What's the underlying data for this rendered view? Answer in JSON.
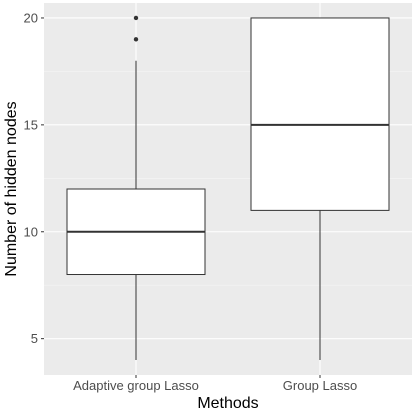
{
  "chart_data": {
    "type": "boxplot",
    "xlabel": "Methods",
    "ylabel": "Number of hidden nodes",
    "ylim": [
      3.3,
      20.7
    ],
    "y_ticks": [
      5,
      10,
      15,
      20
    ],
    "y_tick_labels": [
      "5",
      "10",
      "15",
      "20"
    ],
    "categories": [
      "Adaptive group Lasso",
      "Group Lasso"
    ],
    "boxes": [
      {
        "category": "Adaptive group Lasso",
        "whisker_low": 4,
        "q1": 8,
        "median": 10,
        "q3": 12,
        "whisker_high": 18,
        "outliers": [
          19,
          20
        ]
      },
      {
        "category": "Group Lasso",
        "whisker_low": 4,
        "q1": 11,
        "median": 15,
        "q3": 20,
        "whisker_high": 20,
        "outliers": []
      }
    ],
    "grid": true,
    "legend": "none"
  },
  "colors": {
    "panel_background": "#ebebeb",
    "grid_major": "#ffffff",
    "grid_minor": "#f5f5f5",
    "box_fill": "#ffffff",
    "box_line": "#333333",
    "tick_label": "#4d4d4d",
    "axis_title": "#000000",
    "outlier": "#333333"
  }
}
